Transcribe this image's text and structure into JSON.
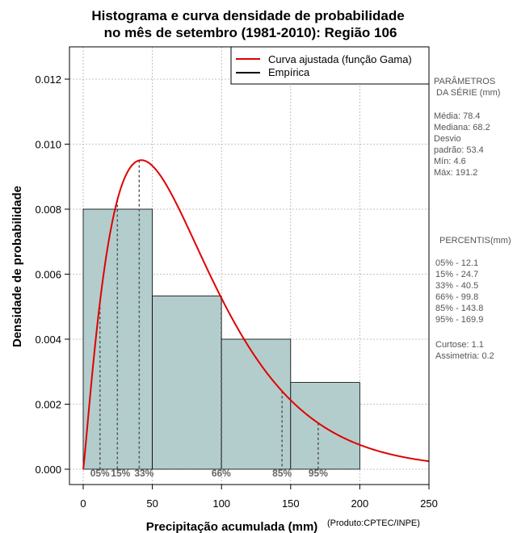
{
  "chart_data": {
    "type": "histogram",
    "title_line1": "Histograma e curva densidade de probabilidade",
    "title_line2": "no mês de setembro (1981-2010): Região 106",
    "xlabel": "Precipitação acumulada (mm)",
    "ylabel": "Densidade de probabilidade",
    "credit": "(Produto:CPTEC/INPE)",
    "xlim": [
      -10,
      250
    ],
    "ylim": [
      0,
      0.013
    ],
    "xticks": [
      0,
      50,
      100,
      150,
      200,
      250
    ],
    "yticks": [
      0.0,
      0.002,
      0.004,
      0.006,
      0.008,
      0.01,
      0.012
    ],
    "ytick_labels": [
      "0.000",
      "0.002",
      "0.004",
      "0.006",
      "0.008",
      "0.010",
      "0.012"
    ],
    "grid": true,
    "bins": [
      {
        "from": 0,
        "to": 50,
        "density": 0.008
      },
      {
        "from": 50,
        "to": 100,
        "density": 0.00533
      },
      {
        "from": 100,
        "to": 150,
        "density": 0.004
      },
      {
        "from": 150,
        "to": 200,
        "density": 0.00267
      }
    ],
    "gamma_curve": {
      "mean": 78.4,
      "sd": 53.4,
      "x_start": 0,
      "x_end": 250
    },
    "percentiles": [
      {
        "label": "05%",
        "value": 12.1
      },
      {
        "label": "15%",
        "value": 24.7
      },
      {
        "label": "33%",
        "value": 40.5
      },
      {
        "label": "66%",
        "value": 99.8
      },
      {
        "label": "85%",
        "value": 143.8
      },
      {
        "label": "95%",
        "value": 169.9
      }
    ],
    "legend": {
      "position": "top-right",
      "entries": [
        {
          "label": "Curva ajustada (função Gama)",
          "color": "#e00000"
        },
        {
          "label": "Empírica",
          "color": "#000000"
        }
      ]
    },
    "colors": {
      "bar_fill": "#b3cdcc",
      "curve": "#e00000",
      "grid": "#b0b0b0",
      "percentile_line": "#555555"
    }
  },
  "side_panel": {
    "params_title_1": "PARÂMETROS",
    "params_title_2": "DA SÉRIE (mm)",
    "media": "Média:  78.4",
    "mediana": "Mediana:  68.2",
    "desvio_1": "Desvio",
    "desvio_2": "padrão:  53.4",
    "min": "Mín:  4.6",
    "max": "Máx:  191.2",
    "percentis_title": "PERCENTIS(mm)",
    "p05": "05% -  12.1",
    "p15": "15% -  24.7",
    "p33": "33% -  40.5",
    "p66": "66% -  99.8",
    "p85": "85% -  143.8",
    "p95": "95% -  169.9",
    "curtose": "Curtose:  1.1",
    "assimetria": "Assimetria:  0.2"
  }
}
